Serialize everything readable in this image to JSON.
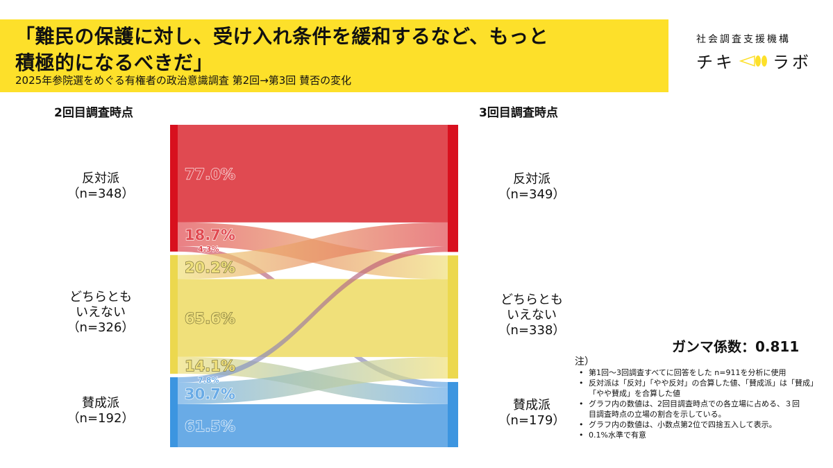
{
  "header": {
    "title_line1": "「難民の保護に対し、受け入れ条件を緩和するなど、もっと",
    "title_line2": "積極的になるべきだ」",
    "subtitle": "2025年参院選をめぐる有権者の政治意識調査 第2回→第3回 賛否の変化"
  },
  "logo": {
    "org": "社会調査支援機構",
    "name_left": "チキ",
    "name_right": "ラボ",
    "accent": "#fde02a"
  },
  "gamma_label": "ガンマ係数：0.811",
  "notes": {
    "heading": "注）",
    "items": [
      "第1回〜3回調査すべてに回答をした n=911を分析に使用",
      "反対派は「反対」「やや反対」の合算した値、「賛成派」は「賛成」「やや賛成」を合算した値",
      "グラフ内の数値は、2回目調査時点での各立場に占める、３回目調査時点の立場の割合を示している。",
      "グラフ内の数値は、小数点第2位で四捨五入して表示。",
      "0.1%水準で有意"
    ]
  },
  "chart_data": {
    "type": "sankey",
    "left_title": "2回目調査時点",
    "right_title": "3回目調査時点",
    "colors": {
      "反対派": "#e04a51",
      "どちらともいえない": "#f0e07a",
      "賛成派": "#69abe6"
    },
    "bar_colors": {
      "反対派": "#d8101e",
      "どちらともいえない": "#ecd84e",
      "賛成派": "#3c95e0"
    },
    "left_nodes": [
      {
        "key": "反対派",
        "label": "反対派",
        "n_label": "（n=348）",
        "n": 348
      },
      {
        "key": "どちらともいえない",
        "label": "どちらとも\nいえない",
        "n_label": "（n=326）",
        "n": 326
      },
      {
        "key": "賛成派",
        "label": "賛成派",
        "n_label": "（n=192）",
        "n": 192
      }
    ],
    "right_nodes": [
      {
        "key": "反対派",
        "label": "反対派",
        "n_label": "（n=349）",
        "n": 349
      },
      {
        "key": "どちらともいえない",
        "label": "どちらとも\nいえない",
        "n_label": "（n=338）",
        "n": 338
      },
      {
        "key": "賛成派",
        "label": "賛成派",
        "n_label": "（n=179）",
        "n": 179
      }
    ],
    "flows": [
      {
        "from": "反対派",
        "to": "反対派",
        "pct": 77.0,
        "label": "77.0%"
      },
      {
        "from": "反対派",
        "to": "どちらともいえない",
        "pct": 18.7,
        "label": "18.7%"
      },
      {
        "from": "反対派",
        "to": "賛成派",
        "pct": 4.3,
        "label": "4.3%"
      },
      {
        "from": "どちらともいえない",
        "to": "反対派",
        "pct": 20.2,
        "label": "20.2%"
      },
      {
        "from": "どちらともいえない",
        "to": "どちらともいえない",
        "pct": 65.6,
        "label": "65.6%"
      },
      {
        "from": "どちらともいえない",
        "to": "賛成派",
        "pct": 14.1,
        "label": "14.1%"
      },
      {
        "from": "賛成派",
        "to": "反対派",
        "pct": 7.8,
        "label": "7.8%"
      },
      {
        "from": "賛成派",
        "to": "どちらともいえない",
        "pct": 30.7,
        "label": "30.7%"
      },
      {
        "from": "賛成派",
        "to": "賛成派",
        "pct": 61.5,
        "label": "61.5%"
      }
    ]
  }
}
